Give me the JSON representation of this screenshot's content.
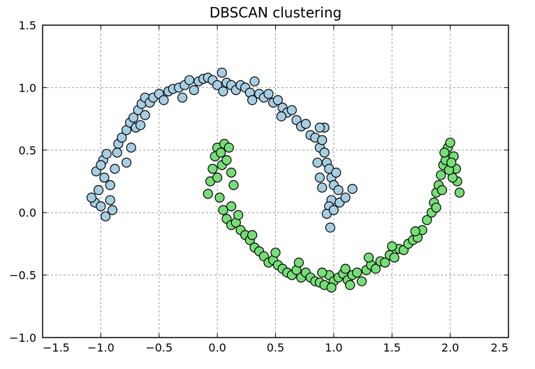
{
  "chart_data": {
    "type": "scatter",
    "title": "DBSCAN clustering",
    "xlabel": "",
    "ylabel": "",
    "xlim": [
      -1.5,
      2.5
    ],
    "ylim": [
      -1.0,
      1.5
    ],
    "xticks": [
      "−1.5",
      "−1.0",
      "−0.5",
      "0.0",
      "0.5",
      "1.0",
      "1.5",
      "2.0",
      "2.5"
    ],
    "yticks": [
      "1.5",
      "1.0",
      "0.5",
      "0.0",
      "−0.5",
      "−1.0"
    ],
    "grid": true,
    "grid_style": "dashed",
    "legend": "none",
    "point_edge_color": "#000000",
    "series": [
      {
        "color": "#a6cee3",
        "points": [
          [
            -1.05,
            0.08
          ],
          [
            -1.02,
            0.18
          ],
          [
            -1.04,
            0.33
          ],
          [
            -0.98,
            0.42
          ],
          [
            -0.95,
            0.47
          ],
          [
            -0.97,
            0.28
          ],
          [
            -1.0,
            0.05
          ],
          [
            -0.96,
            -0.03
          ],
          [
            -0.92,
            0.1
          ],
          [
            -0.9,
            0.02
          ],
          [
            -0.88,
            0.35
          ],
          [
            -0.85,
            0.55
          ],
          [
            -0.82,
            0.6
          ],
          [
            -0.78,
            0.66
          ],
          [
            -0.75,
            0.72
          ],
          [
            -0.72,
            0.76
          ],
          [
            -0.68,
            0.82
          ],
          [
            -0.65,
            0.87
          ],
          [
            -0.62,
            0.92
          ],
          [
            -0.58,
            0.88
          ],
          [
            -0.55,
            0.92
          ],
          [
            -0.5,
            0.95
          ],
          [
            -0.46,
            0.9
          ],
          [
            -0.42,
            0.97
          ],
          [
            -0.38,
            0.99
          ],
          [
            -0.33,
            1.0
          ],
          [
            -0.28,
            1.02
          ],
          [
            -0.24,
            1.06
          ],
          [
            -0.2,
            0.98
          ],
          [
            -0.16,
            1.05
          ],
          [
            -0.12,
            1.07
          ],
          [
            -0.08,
            1.08
          ],
          [
            -0.04,
            1.06
          ],
          [
            0.0,
            1.02
          ],
          [
            0.04,
            1.12
          ],
          [
            0.08,
            1.04
          ],
          [
            0.12,
            1.02
          ],
          [
            0.16,
            0.98
          ],
          [
            0.2,
            1.02
          ],
          [
            0.24,
            1.0
          ],
          [
            0.28,
            0.96
          ],
          [
            0.32,
            1.05
          ],
          [
            0.36,
            0.95
          ],
          [
            0.4,
            0.92
          ],
          [
            0.44,
            0.95
          ],
          [
            0.48,
            0.88
          ],
          [
            0.52,
            0.9
          ],
          [
            0.56,
            0.84
          ],
          [
            0.6,
            0.8
          ],
          [
            0.64,
            0.82
          ],
          [
            0.68,
            0.74
          ],
          [
            0.72,
            0.69
          ],
          [
            0.76,
            0.71
          ],
          [
            0.8,
            0.62
          ],
          [
            0.84,
            0.6
          ],
          [
            0.88,
            0.52
          ],
          [
            0.9,
            0.58
          ],
          [
            0.92,
            0.48
          ],
          [
            0.94,
            0.4
          ],
          [
            0.96,
            0.35
          ],
          [
            0.98,
            0.28
          ],
          [
            1.0,
            0.22
          ],
          [
            1.02,
            0.32
          ],
          [
            1.04,
            0.18
          ],
          [
            0.98,
            0.1
          ],
          [
            0.96,
            0.05
          ],
          [
            0.94,
            -0.01
          ],
          [
            0.97,
            -0.12
          ],
          [
            1.0,
            0.02
          ],
          [
            1.05,
            0.08
          ],
          [
            1.1,
            0.12
          ],
          [
            1.16,
            0.19
          ],
          [
            -0.78,
            0.4
          ],
          [
            -0.74,
            0.52
          ],
          [
            -0.7,
            0.68
          ],
          [
            -0.66,
            0.7
          ],
          [
            -0.62,
            0.78
          ],
          [
            -0.3,
            0.92
          ],
          [
            0.05,
            0.97
          ],
          [
            0.3,
            0.9
          ],
          [
            0.55,
            0.77
          ],
          [
            0.86,
            0.4
          ],
          [
            0.88,
            0.28
          ],
          [
            0.9,
            0.2
          ],
          [
            -1.08,
            0.12
          ],
          [
            -1.0,
            0.38
          ],
          [
            -0.92,
            0.22
          ],
          [
            -0.86,
            0.48
          ],
          [
            0.92,
            0.68
          ],
          [
            0.88,
            0.68
          ]
        ]
      },
      {
        "color": "#77dd77",
        "points": [
          [
            -0.08,
            0.15
          ],
          [
            -0.06,
            0.25
          ],
          [
            -0.04,
            0.35
          ],
          [
            -0.02,
            0.45
          ],
          [
            0.0,
            0.52
          ],
          [
            0.03,
            0.48
          ],
          [
            0.06,
            0.55
          ],
          [
            0.1,
            0.52
          ],
          [
            0.12,
            0.32
          ],
          [
            0.14,
            0.22
          ],
          [
            0.02,
            0.12
          ],
          [
            0.05,
            0.02
          ],
          [
            0.08,
            -0.05
          ],
          [
            0.12,
            -0.1
          ],
          [
            0.16,
            -0.08
          ],
          [
            0.2,
            -0.14
          ],
          [
            0.24,
            -0.18
          ],
          [
            0.28,
            -0.22
          ],
          [
            0.32,
            -0.28
          ],
          [
            0.36,
            -0.31
          ],
          [
            0.4,
            -0.35
          ],
          [
            0.44,
            -0.4
          ],
          [
            0.48,
            -0.38
          ],
          [
            0.52,
            -0.42
          ],
          [
            0.56,
            -0.45
          ],
          [
            0.6,
            -0.48
          ],
          [
            0.64,
            -0.5
          ],
          [
            0.68,
            -0.46
          ],
          [
            0.72,
            -0.52
          ],
          [
            0.76,
            -0.48
          ],
          [
            0.8,
            -0.52
          ],
          [
            0.84,
            -0.55
          ],
          [
            0.88,
            -0.56
          ],
          [
            0.92,
            -0.58
          ],
          [
            0.96,
            -0.5
          ],
          [
            1.0,
            -0.55
          ],
          [
            1.04,
            -0.52
          ],
          [
            1.08,
            -0.49
          ],
          [
            1.12,
            -0.54
          ],
          [
            1.16,
            -0.5
          ],
          [
            1.2,
            -0.48
          ],
          [
            1.24,
            -0.55
          ],
          [
            1.28,
            -0.46
          ],
          [
            1.32,
            -0.42
          ],
          [
            1.36,
            -0.45
          ],
          [
            1.4,
            -0.39
          ],
          [
            1.44,
            -0.4
          ],
          [
            1.48,
            -0.34
          ],
          [
            1.52,
            -0.36
          ],
          [
            1.56,
            -0.29
          ],
          [
            1.6,
            -0.3
          ],
          [
            1.64,
            -0.25
          ],
          [
            1.68,
            -0.22
          ],
          [
            1.72,
            -0.2
          ],
          [
            1.76,
            -0.14
          ],
          [
            1.8,
            -0.06
          ],
          [
            1.84,
            0.0
          ],
          [
            1.86,
            0.08
          ],
          [
            1.88,
            0.16
          ],
          [
            1.9,
            0.22
          ],
          [
            1.92,
            0.3
          ],
          [
            1.94,
            0.38
          ],
          [
            1.96,
            0.42
          ],
          [
            1.98,
            0.52
          ],
          [
            2.0,
            0.56
          ],
          [
            2.03,
            0.45
          ],
          [
            2.05,
            0.35
          ],
          [
            2.06,
            0.25
          ],
          [
            2.08,
            0.16
          ],
          [
            2.02,
            0.28
          ],
          [
            1.95,
            0.48
          ],
          [
            1.99,
            0.34
          ],
          [
            0.04,
            0.38
          ],
          [
            0.0,
            0.28
          ],
          [
            0.08,
            0.42
          ],
          [
            0.18,
            -0.02
          ],
          [
            0.3,
            -0.18
          ],
          [
            0.5,
            -0.32
          ],
          [
            0.7,
            -0.4
          ],
          [
            0.9,
            -0.48
          ],
          [
            1.1,
            -0.45
          ],
          [
            1.3,
            -0.36
          ],
          [
            1.5,
            -0.27
          ],
          [
            1.7,
            -0.15
          ],
          [
            1.88,
            0.04
          ],
          [
            1.93,
            0.18
          ],
          [
            2.01,
            0.4
          ],
          [
            0.12,
            0.05
          ],
          [
            0.98,
            -0.6
          ],
          [
            1.14,
            -0.58
          ]
        ]
      }
    ]
  }
}
